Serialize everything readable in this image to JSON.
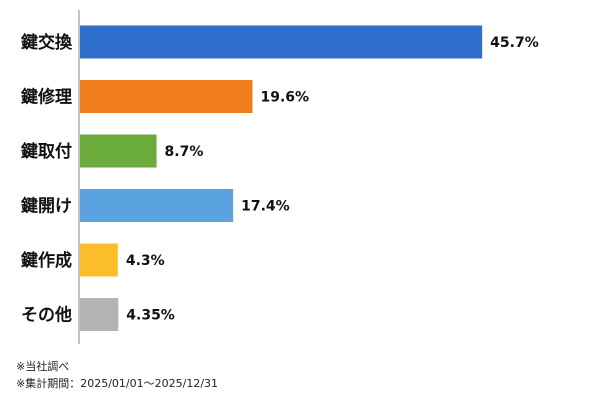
{
  "chart_data": {
    "type": "bar",
    "orientation": "horizontal",
    "categories": [
      "鍵交換",
      "鍵修理",
      "鍵取付",
      "鍵開け",
      "鍵作成",
      "その他"
    ],
    "values": [
      45.7,
      19.6,
      8.7,
      17.4,
      4.3,
      4.35
    ],
    "value_labels": [
      "45.7%",
      "19.6%",
      "8.7%",
      "17.4%",
      "4.3%",
      "4.35%"
    ],
    "colors": [
      "#2e6fcc",
      "#f07d1e",
      "#6aab3c",
      "#5aa2e0",
      "#fbbe2a",
      "#b3b3b3"
    ],
    "xlim": [
      0,
      50
    ],
    "grid": false,
    "legend": "none",
    "title": "",
    "xlabel": "",
    "ylabel": ""
  },
  "notes": {
    "source": "※当社調べ",
    "period": "※集計期間：2025/01/01〜2025/12/31"
  }
}
